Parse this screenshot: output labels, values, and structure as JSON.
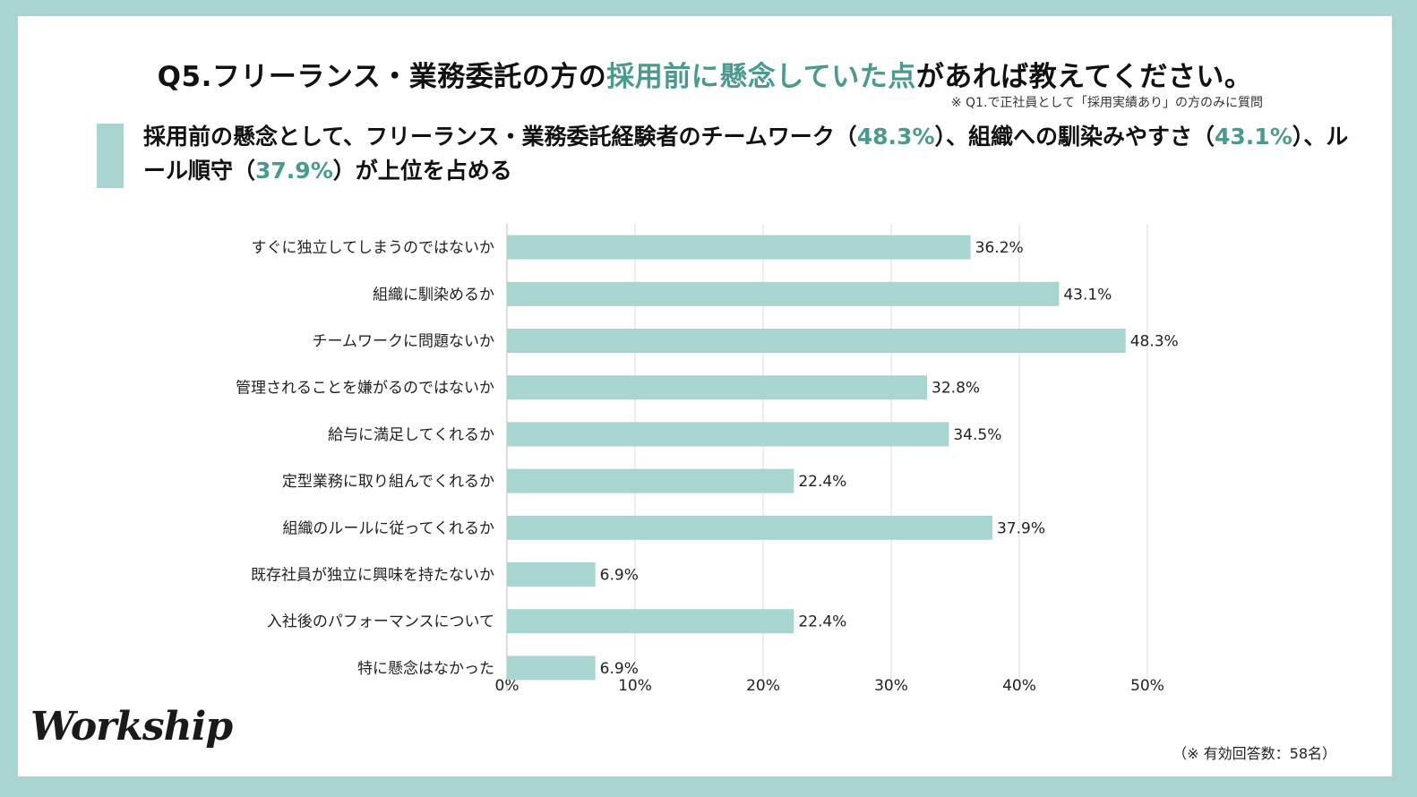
{
  "title": {
    "prefix": "Q5.フリーランス・業務委託の方の",
    "highlight": "採用前に懸念していた点",
    "suffix": "があれば教えてください。"
  },
  "note": "※ Q1.で正社員として「採用実績あり」の方のみに質問",
  "subtitle": {
    "p1": "採用前の懸念として、フリーランス・業務委託経験者のチームワーク（",
    "v1": "48.3%",
    "p2": "）、組織への馴染みやすさ（",
    "v2": "43.1%",
    "p3": "）、ルール順守（",
    "v3": "37.9%",
    "p4": "）が上位を占める"
  },
  "logo": "Workship",
  "footnote": "（※ 有効回答数：58名）",
  "colors": {
    "bar": "#a8d5cf",
    "accent": "#4a9a8e",
    "frame": "#a8d5cf",
    "grid": "#dddddd"
  },
  "chart_data": {
    "type": "bar",
    "orientation": "horizontal",
    "categories": [
      "すぐに独立してしまうのではないか",
      "組織に馴染めるか",
      "チームワークに問題ないか",
      "管理されることを嫌がるのではないか",
      "給与に満足してくれるか",
      "定型業務に取り組んでくれるか",
      "組織のルールに従ってくれるか",
      "既存社員が独立に興味を持たないか",
      "入社後のパフォーマンスについて",
      "特に懸念はなかった"
    ],
    "values": [
      36.2,
      43.1,
      48.3,
      32.8,
      34.5,
      22.4,
      37.9,
      6.9,
      22.4,
      6.9
    ],
    "value_labels": [
      "36.2%",
      "43.1%",
      "48.3%",
      "32.8%",
      "34.5%",
      "22.4%",
      "37.9%",
      "6.9%",
      "22.4%",
      "6.9%"
    ],
    "xlim": [
      0,
      50
    ],
    "xticks": [
      0,
      10,
      20,
      30,
      40,
      50
    ],
    "xtick_labels": [
      "0%",
      "10%",
      "20%",
      "30%",
      "40%",
      "50%"
    ],
    "xlabel": "",
    "ylabel": "",
    "grid": true,
    "legend": "none"
  }
}
